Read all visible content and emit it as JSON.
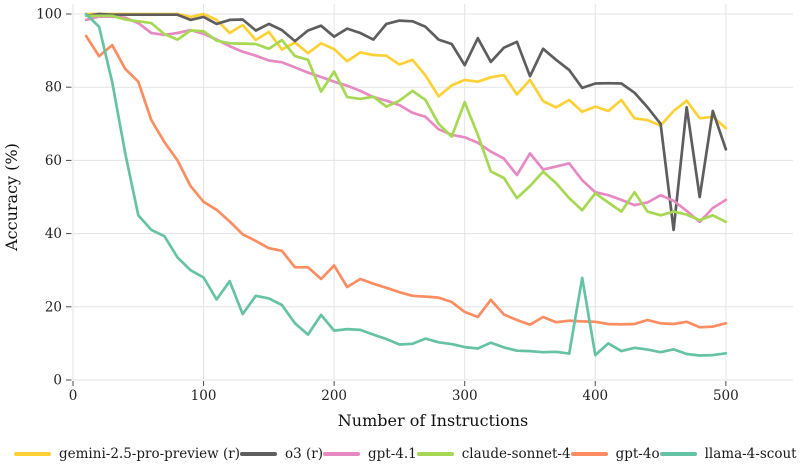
{
  "chart_data": {
    "type": "line",
    "title": "",
    "xlabel": "Number of Instructions",
    "ylabel": "Accuracy (%)",
    "xlim": [
      0,
      551
    ],
    "ylim": [
      0,
      103
    ],
    "x_ticks": [
      0,
      100,
      200,
      300,
      400,
      500
    ],
    "y_ticks": [
      0,
      20,
      40,
      60,
      80,
      100
    ],
    "grid": true,
    "legend_position": "bottom",
    "x": [
      10,
      20,
      30,
      40,
      50,
      60,
      70,
      80,
      90,
      100,
      110,
      120,
      130,
      140,
      150,
      160,
      170,
      180,
      190,
      200,
      210,
      220,
      230,
      240,
      250,
      260,
      270,
      280,
      290,
      300,
      310,
      320,
      330,
      340,
      350,
      360,
      370,
      380,
      390,
      400,
      410,
      420,
      430,
      440,
      450,
      460,
      470,
      480,
      490,
      500
    ],
    "series": [
      {
        "name": "gemini-2.5-pro-preview (r)",
        "color": "#FDD135",
        "values": [
          100,
          100,
          100,
          100,
          100,
          100,
          100,
          100,
          99.2,
          100,
          98.4,
          94.8,
          97,
          92.9,
          95.1,
          90.3,
          92.2,
          89.3,
          92,
          90.4,
          87.1,
          89.5,
          88.8,
          88.6,
          86.2,
          87.5,
          83.2,
          77.5,
          80.5,
          82,
          81.5,
          82.7,
          83.3,
          78,
          82,
          76.2,
          74.5,
          76.5,
          73.3,
          74.7,
          73.5,
          76.5,
          71.5,
          71,
          69.5,
          73.5,
          76.3,
          71.5,
          71.9,
          68.8
        ]
      },
      {
        "name": "o3 (r)",
        "color": "#5E5E5E",
        "values": [
          99.5,
          100,
          99.8,
          99.8,
          99.8,
          99.8,
          99.8,
          99.8,
          98.4,
          99.2,
          97.3,
          98.4,
          98.5,
          95.5,
          97.3,
          95.6,
          92.6,
          95.5,
          96.8,
          93.8,
          96,
          94.8,
          93,
          97.3,
          98.2,
          98,
          96.5,
          93,
          91.8,
          86,
          93.4,
          86.9,
          90.8,
          92.4,
          83,
          90.5,
          87.5,
          84.7,
          79.8,
          81,
          81.1,
          81,
          78.5,
          74.5,
          70,
          41,
          74.5,
          50,
          73.5,
          63
        ]
      },
      {
        "name": "gpt-4.1",
        "color": "#E78AC3",
        "values": [
          98.4,
          99.3,
          99.3,
          99,
          97.5,
          94.8,
          94.3,
          94.8,
          95.6,
          94.6,
          93,
          91.2,
          89.7,
          88.6,
          87.3,
          86.8,
          85.4,
          84,
          82.8,
          81.5,
          80.4,
          79,
          77.3,
          76.3,
          75.1,
          73,
          71.9,
          68.5,
          67,
          66.3,
          64.8,
          62.4,
          60.5,
          56,
          61.9,
          57.5,
          58.3,
          59.2,
          54.6,
          51.3,
          50.5,
          49.2,
          47.8,
          48.5,
          50.5,
          49,
          46.2,
          43.2,
          47,
          49.2
        ]
      },
      {
        "name": "claude-sonnet-4",
        "color": "#A6D854",
        "values": [
          99.5,
          99.5,
          99.5,
          98.5,
          98,
          97.5,
          94.5,
          93,
          95.5,
          95.3,
          92.7,
          92,
          91.9,
          91.8,
          90.5,
          92.9,
          88.5,
          87.5,
          78.8,
          84.3,
          77.3,
          76.8,
          77.4,
          74.7,
          76.3,
          79,
          76.5,
          70,
          66.5,
          75.9,
          67,
          57,
          55.2,
          49.7,
          53,
          56.9,
          53.8,
          49.7,
          46.4,
          51,
          48.5,
          46,
          51.3,
          46,
          45,
          46,
          45.2,
          43.7,
          45,
          43.2
        ]
      },
      {
        "name": "gpt-4o",
        "color": "#FC8D62",
        "values": [
          94,
          88.5,
          91.5,
          85,
          81.5,
          71,
          65,
          60,
          53,
          48.7,
          46.5,
          43.3,
          39.8,
          38,
          36,
          35.3,
          30.8,
          30.8,
          27.6,
          31.3,
          25.4,
          27.6,
          26.3,
          25.2,
          24,
          23,
          22.8,
          22.5,
          21.3,
          18.6,
          17.2,
          21.9,
          17.9,
          16.4,
          15.1,
          17.2,
          15.8,
          16.2,
          16,
          15.9,
          15.3,
          15.2,
          15.3,
          16.4,
          15.5,
          15.3,
          15.9,
          14.4,
          14.6,
          15.5
        ]
      },
      {
        "name": "llama-4-scout",
        "color": "#66C2A5",
        "values": [
          100,
          96.5,
          81.4,
          62,
          45,
          41,
          39.3,
          33.5,
          30,
          28,
          22,
          27,
          18,
          23,
          22.3,
          20.5,
          15.5,
          12.4,
          17.8,
          13.5,
          13.9,
          13.7,
          12.4,
          11.2,
          9.7,
          9.9,
          11.3,
          10.3,
          9.8,
          9,
          8.6,
          10.2,
          8.9,
          8,
          7.9,
          7.6,
          7.7,
          7.2,
          27.9,
          6.8,
          10,
          7.9,
          8.8,
          8.3,
          7.6,
          8.4,
          7.1,
          6.7,
          6.8,
          7.3
        ]
      }
    ]
  }
}
